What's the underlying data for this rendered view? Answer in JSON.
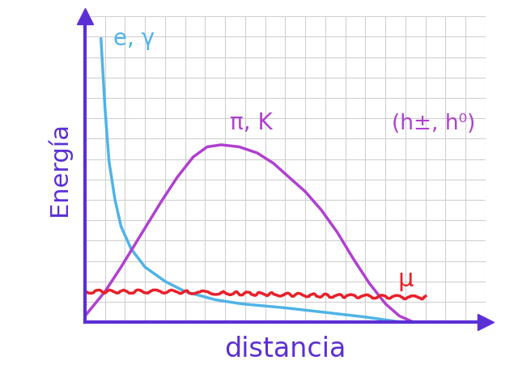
{
  "chart_data": {
    "type": "line",
    "x_label": "distancia",
    "y_label": "Energía",
    "xlim": [
      0,
      20
    ],
    "ylim": [
      0,
      15
    ],
    "xticks": [
      0,
      1,
      2,
      3,
      4,
      5,
      6,
      7,
      8,
      9,
      10,
      11,
      12,
      13,
      14,
      15,
      16,
      17,
      18,
      19,
      20
    ],
    "yticks": [
      0,
      1,
      2,
      3,
      4,
      5,
      6,
      7,
      8,
      9,
      10,
      11,
      12,
      13,
      14,
      15
    ],
    "grid": true,
    "tick_labels": false,
    "annotations": [
      "(h±, h⁰)"
    ],
    "series": [
      {
        "name": "e, γ",
        "color": "#4fb3e8",
        "line_style": "solid",
        "x": [
          0.8,
          1.0,
          1.2,
          1.5,
          1.8,
          2.3,
          3.0,
          4.0,
          5.0,
          6.5,
          7.8,
          10.0,
          11.8,
          14.0,
          15.8
        ],
        "values": [
          13.9,
          10.5,
          7.9,
          6.0,
          4.7,
          3.6,
          2.7,
          2.0,
          1.5,
          1.1,
          0.9,
          0.7,
          0.5,
          0.25,
          0.0
        ]
      },
      {
        "name": "π, K",
        "color": "#b040d0",
        "line_style": "solid",
        "x": [
          0.0,
          1.0,
          1.8,
          2.8,
          3.8,
          4.6,
          5.4,
          6.1,
          6.8,
          7.7,
          8.6,
          9.4,
          10.2,
          11.0,
          11.8,
          12.6,
          13.4,
          14.2,
          15.0,
          15.7,
          16.4
        ],
        "values": [
          0.3,
          1.5,
          2.7,
          4.3,
          5.9,
          7.1,
          8.1,
          8.6,
          8.7,
          8.6,
          8.3,
          7.8,
          7.1,
          6.4,
          5.5,
          4.4,
          3.1,
          1.9,
          0.9,
          0.3,
          0.0
        ]
      },
      {
        "name": "μ",
        "color": "#e8202a",
        "line_style": "wavy",
        "x": [
          0.0,
          4.0,
          8.0,
          12.0,
          17.0
        ],
        "values": [
          1.5,
          1.5,
          1.4,
          1.3,
          1.2
        ]
      }
    ]
  }
}
